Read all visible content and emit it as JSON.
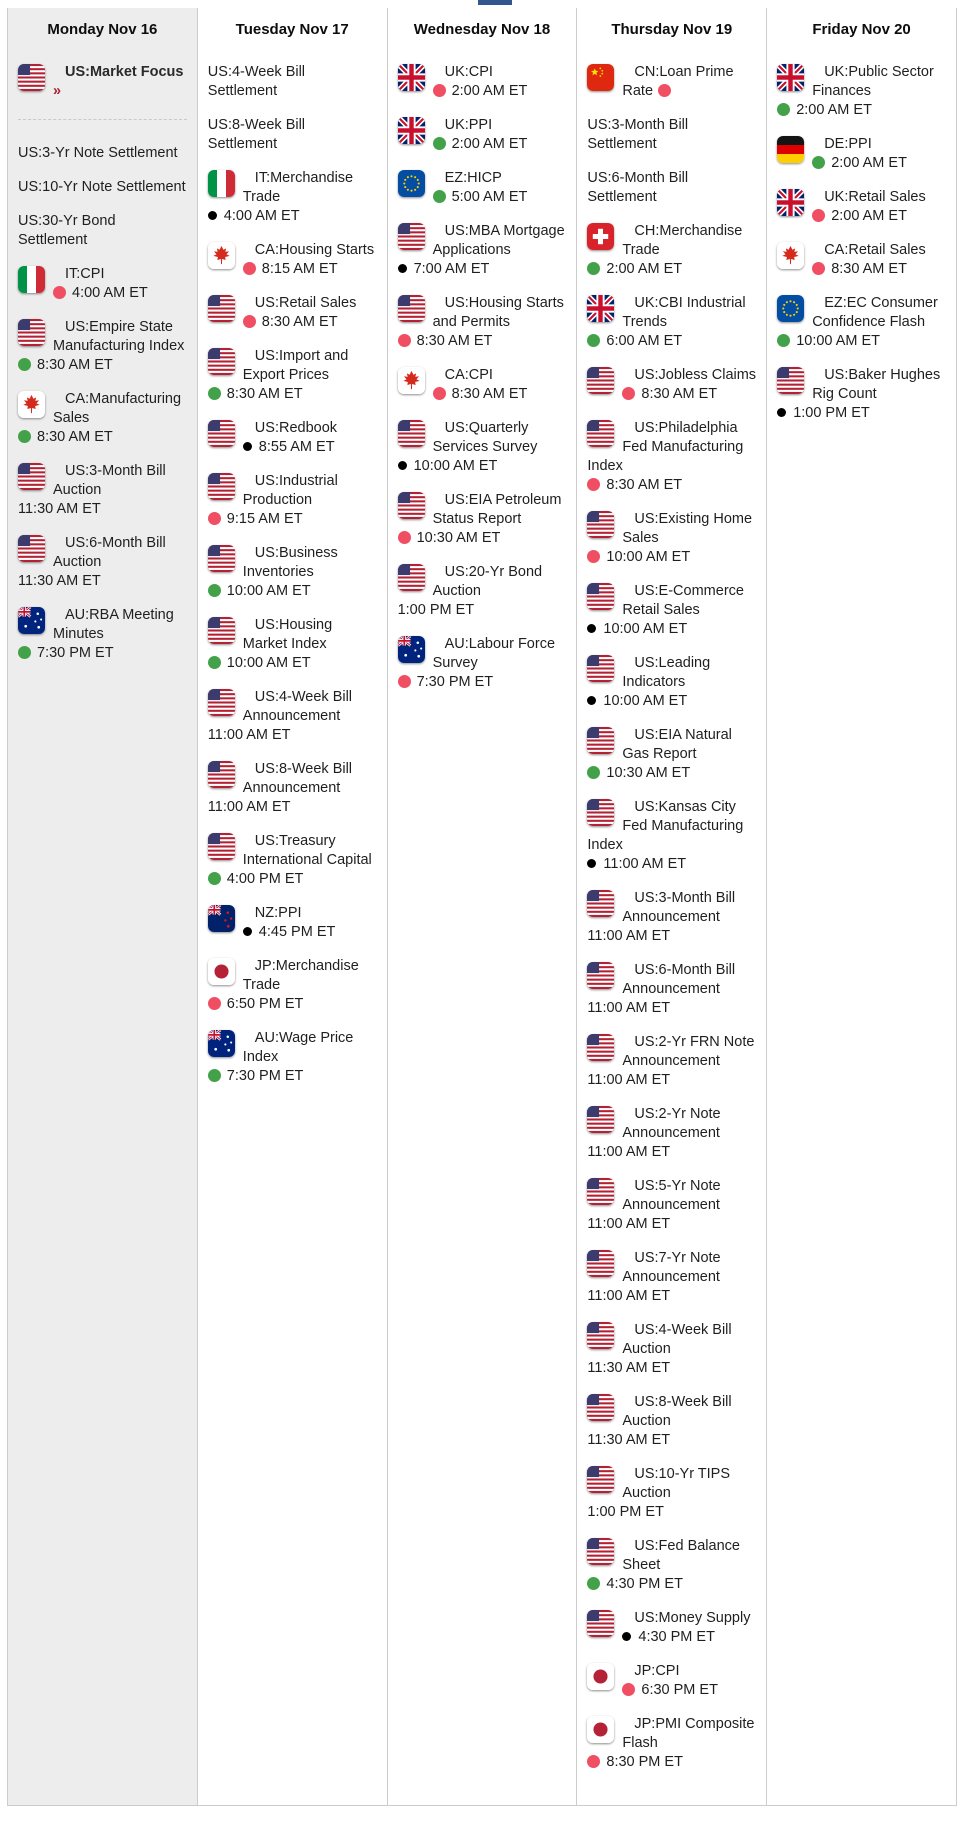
{
  "colors": {
    "red_dot": "#ef4e63",
    "green_dot": "#43a249",
    "black_dot": "#000000",
    "focus_arrow": "#a8232f",
    "monday_bg": "#ededed",
    "tab_stub": "#33568e",
    "border": "#cccccc",
    "text": "#1f1f1f"
  },
  "glyphs": {
    "focus_arrow": "»"
  },
  "columns": [
    {
      "id": "monday",
      "title": "Monday Nov 16",
      "highlight": true,
      "events": [
        {
          "flag": "US",
          "name": "US:Market Focus",
          "focus": true
        },
        {
          "divider": true
        },
        {
          "name": "US:3-Yr Note Settlement"
        },
        {
          "name": "US:10-Yr Note Settlement"
        },
        {
          "name": "US:30-Yr Bond Settlement"
        },
        {
          "flag": "IT",
          "name": "IT:CPI",
          "dot": "red",
          "time": "4:00 AM ET"
        },
        {
          "flag": "US",
          "name": "US:Empire State Manufacturing Index",
          "dot": "green",
          "time": "8:30 AM ET"
        },
        {
          "flag": "CA",
          "name": "CA:Manufacturing Sales",
          "dot": "green",
          "time": "8:30 AM ET"
        },
        {
          "flag": "US",
          "name": "US:3-Month Bill Auction",
          "time": "11:30 AM ET"
        },
        {
          "flag": "US",
          "name": "US:6-Month Bill Auction",
          "time": "11:30 AM ET"
        },
        {
          "flag": "AU",
          "name": "AU:RBA Meeting Minutes",
          "dot": "green",
          "time": "7:30 PM ET"
        }
      ]
    },
    {
      "id": "tuesday",
      "title": "Tuesday Nov 17",
      "highlight": false,
      "events": [
        {
          "name": "US:4-Week Bill Settlement"
        },
        {
          "name": "US:8-Week Bill Settlement"
        },
        {
          "flag": "IT",
          "name": "IT:Merchandise Trade",
          "dot": "black",
          "time": "4:00 AM ET"
        },
        {
          "flag": "CA",
          "name": "CA:Housing Starts",
          "dot": "red",
          "time": "8:15 AM ET"
        },
        {
          "flag": "US",
          "name": "US:Retail Sales",
          "dot": "red",
          "time": "8:30 AM ET"
        },
        {
          "flag": "US",
          "name": "US:Import and Export Prices",
          "dot": "green",
          "time": "8:30 AM ET"
        },
        {
          "flag": "US",
          "name": "US:Redbook",
          "dot": "black",
          "time": "8:55 AM ET"
        },
        {
          "flag": "US",
          "name": "US:Industrial Production",
          "dot": "red",
          "time": "9:15 AM ET"
        },
        {
          "flag": "US",
          "name": "US:Business Inventories",
          "dot": "green",
          "time": "10:00 AM ET"
        },
        {
          "flag": "US",
          "name": "US:Housing Market Index",
          "dot": "green",
          "time": "10:00 AM ET"
        },
        {
          "flag": "US",
          "name": "US:4-Week Bill Announcement",
          "time": "11:00 AM ET"
        },
        {
          "flag": "US",
          "name": "US:8-Week Bill Announcement",
          "time": "11:00 AM ET"
        },
        {
          "flag": "US",
          "name": "US:Treasury International Capital",
          "dot": "green",
          "time": "4:00 PM ET"
        },
        {
          "flag": "NZ",
          "name": "NZ:PPI",
          "dot": "black",
          "time": "4:45 PM ET"
        },
        {
          "flag": "JP",
          "name": "JP:Merchandise Trade",
          "dot": "red",
          "time": "6:50 PM ET"
        },
        {
          "flag": "AU",
          "name": "AU:Wage Price Index",
          "dot": "green",
          "time": "7:30 PM ET"
        }
      ]
    },
    {
      "id": "wednesday",
      "title": "Wednesday Nov 18",
      "highlight": false,
      "events": [
        {
          "flag": "UK",
          "name": "UK:CPI",
          "dot": "red",
          "time": "2:00 AM ET"
        },
        {
          "flag": "UK",
          "name": "UK:PPI",
          "dot": "green",
          "time": "2:00 AM ET"
        },
        {
          "flag": "EZ",
          "name": "EZ:HICP",
          "dot": "green",
          "time": "5:00 AM ET"
        },
        {
          "flag": "US",
          "name": "US:MBA Mortgage Applications",
          "dot": "black",
          "time": "7:00 AM ET"
        },
        {
          "flag": "US",
          "name": "US:Housing Starts and Permits",
          "dot": "red",
          "time": "8:30 AM ET"
        },
        {
          "flag": "CA",
          "name": "CA:CPI",
          "dot": "red",
          "time": "8:30 AM ET"
        },
        {
          "flag": "US",
          "name": "US:Quarterly Services Survey",
          "dot": "black",
          "time": "10:00 AM ET"
        },
        {
          "flag": "US",
          "name": "US:EIA Petroleum Status Report",
          "dot": "red",
          "time": "10:30 AM ET"
        },
        {
          "flag": "US",
          "name": "US:20-Yr Bond Auction",
          "time": "1:00 PM ET"
        },
        {
          "flag": "AU",
          "name": "AU:Labour Force Survey",
          "dot": "red",
          "time": "7:30 PM ET"
        }
      ]
    },
    {
      "id": "thursday",
      "title": "Thursday Nov 19",
      "highlight": false,
      "events": [
        {
          "flag": "CN",
          "name": "CN:Loan Prime Rate",
          "inline_dot": "red"
        },
        {
          "name": "US:3-Month Bill Settlement"
        },
        {
          "name": "US:6-Month Bill Settlement"
        },
        {
          "flag": "CH",
          "name": "CH:Merchandise Trade",
          "dot": "green",
          "time": "2:00 AM ET"
        },
        {
          "flag": "UK",
          "name": "UK:CBI Industrial Trends",
          "dot": "green",
          "time": "6:00 AM ET"
        },
        {
          "flag": "US",
          "name": "US:Jobless Claims",
          "dot": "red",
          "time": "8:30 AM ET"
        },
        {
          "flag": "US",
          "name": "US:Philadelphia Fed Manufacturing Index",
          "dot": "red",
          "time": "8:30 AM ET"
        },
        {
          "flag": "US",
          "name": "US:Existing Home Sales",
          "dot": "red",
          "time": "10:00 AM ET"
        },
        {
          "flag": "US",
          "name": "US:E-Commerce Retail Sales",
          "dot": "black",
          "time": "10:00 AM ET"
        },
        {
          "flag": "US",
          "name": "US:Leading Indicators",
          "dot": "black",
          "time": "10:00 AM ET"
        },
        {
          "flag": "US",
          "name": "US:EIA Natural Gas Report",
          "dot": "green",
          "time": "10:30 AM ET"
        },
        {
          "flag": "US",
          "name": "US:Kansas City Fed Manufacturing Index",
          "dot": "black",
          "time": "11:00 AM ET"
        },
        {
          "flag": "US",
          "name": "US:3-Month Bill Announcement",
          "time": "11:00 AM ET"
        },
        {
          "flag": "US",
          "name": "US:6-Month Bill Announcement",
          "time": "11:00 AM ET"
        },
        {
          "flag": "US",
          "name": "US:2-Yr FRN Note Announcement",
          "time": "11:00 AM ET"
        },
        {
          "flag": "US",
          "name": "US:2-Yr Note Announcement",
          "time": "11:00 AM ET"
        },
        {
          "flag": "US",
          "name": "US:5-Yr Note Announcement",
          "time": "11:00 AM ET"
        },
        {
          "flag": "US",
          "name": "US:7-Yr Note Announcement",
          "time": "11:00 AM ET"
        },
        {
          "flag": "US",
          "name": "US:4-Week Bill Auction",
          "time": "11:30 AM ET"
        },
        {
          "flag": "US",
          "name": "US:8-Week Bill Auction",
          "time": "11:30 AM ET"
        },
        {
          "flag": "US",
          "name": "US:10-Yr TIPS Auction",
          "time": "1:00 PM ET"
        },
        {
          "flag": "US",
          "name": "US:Fed Balance Sheet",
          "dot": "green",
          "time": "4:30 PM ET"
        },
        {
          "flag": "US",
          "name": "US:Money Supply",
          "dot": "black",
          "time": "4:30 PM ET"
        },
        {
          "flag": "JP",
          "name": "JP:CPI",
          "dot": "red",
          "time": "6:30 PM ET"
        },
        {
          "flag": "JP",
          "name": "JP:PMI Composite Flash",
          "dot": "red",
          "time": "8:30 PM ET"
        }
      ]
    },
    {
      "id": "friday",
      "title": "Friday Nov 20",
      "highlight": false,
      "events": [
        {
          "flag": "UK",
          "name": "UK:Public Sector Finances",
          "dot": "green",
          "time": "2:00 AM ET"
        },
        {
          "flag": "DE",
          "name": "DE:PPI",
          "dot": "green",
          "time": "2:00 AM ET"
        },
        {
          "flag": "UK",
          "name": "UK:Retail Sales",
          "dot": "red",
          "time": "2:00 AM ET"
        },
        {
          "flag": "CA",
          "name": "CA:Retail Sales",
          "dot": "red",
          "time": "8:30 AM ET"
        },
        {
          "flag": "EZ",
          "name": "EZ:EC Consumer Confidence Flash",
          "dot": "green",
          "time": "10:00 AM ET"
        },
        {
          "flag": "US",
          "name": "US:Baker Hughes Rig Count",
          "dot": "black",
          "time": "1:00 PM ET"
        }
      ]
    }
  ]
}
